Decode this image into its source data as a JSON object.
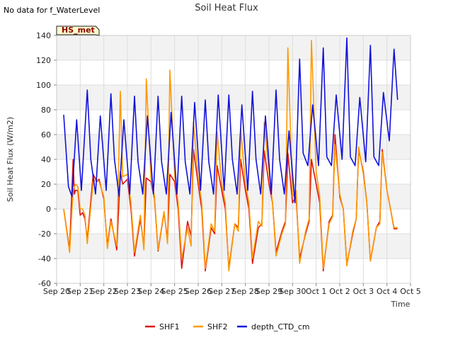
{
  "no_data_note": "No data for f_WaterLevel",
  "badge": "HS_met",
  "chart_data": {
    "type": "line",
    "title": "Soil Heat Flux",
    "xlabel": "Time",
    "ylabel": "Soil Heat Flux (W/m2)",
    "ylim": [
      -60,
      140
    ],
    "yticks": [
      -60,
      -40,
      -20,
      0,
      20,
      40,
      60,
      80,
      100,
      120,
      140
    ],
    "xlim": [
      0,
      15
    ],
    "xticks": [
      0,
      1,
      2,
      3,
      4,
      5,
      6,
      7,
      8,
      9,
      10,
      11,
      12,
      13,
      14,
      15
    ],
    "xtick_labels": [
      "Sep 20",
      "Sep 21",
      "Sep 22",
      "Sep 23",
      "Sep 24",
      "Sep 25",
      "Sep 26",
      "Sep 27",
      "Sep 28",
      "Sep 29",
      "Sep 30",
      "Oct 1",
      "Oct 2",
      "Oct 3",
      "Oct 4",
      "Oct 5"
    ],
    "x_units": "days since Sep 20",
    "grid": true,
    "legend_position": "bottom",
    "series": [
      {
        "name": "SHF1",
        "color": "#dd1111",
        "x": [
          0.3,
          0.55,
          0.7,
          0.75,
          0.8,
          0.9,
          1.0,
          1.1,
          1.2,
          1.3,
          1.55,
          1.7,
          1.8,
          2.0,
          2.15,
          2.3,
          2.55,
          2.7,
          2.8,
          3.0,
          3.15,
          3.3,
          3.55,
          3.7,
          3.8,
          4.0,
          4.15,
          4.3,
          4.55,
          4.7,
          4.8,
          5.0,
          5.15,
          5.3,
          5.55,
          5.7,
          5.8,
          6.0,
          6.15,
          6.3,
          6.55,
          6.7,
          6.8,
          7.0,
          7.15,
          7.3,
          7.55,
          7.7,
          7.8,
          8.0,
          8.15,
          8.3,
          8.55,
          8.7,
          8.8,
          9.0,
          9.15,
          9.3,
          9.55,
          9.7,
          9.8,
          10.0,
          10.15,
          10.3,
          10.55,
          10.7,
          10.8,
          11.0,
          11.15,
          11.3,
          11.55,
          11.7,
          11.8,
          12.0,
          12.15,
          12.3,
          12.55,
          12.7,
          12.8,
          13.0,
          13.15,
          13.3,
          13.55,
          13.7,
          13.8,
          14.0,
          14.15,
          14.3,
          14.45
        ],
        "y": [
          0,
          -33,
          40,
          12,
          15,
          15,
          -5,
          -3,
          -8,
          -25,
          28,
          22,
          24,
          8,
          -30,
          -8,
          -33,
          30,
          20,
          24,
          0,
          -38,
          -8,
          -30,
          25,
          22,
          8,
          -34,
          -3,
          -25,
          28,
          22,
          0,
          -48,
          -10,
          -22,
          48,
          20,
          0,
          -50,
          -15,
          -20,
          35,
          15,
          0,
          -48,
          -12,
          -15,
          40,
          15,
          0,
          -44,
          -15,
          -12,
          47,
          20,
          5,
          -35,
          -18,
          -10,
          45,
          5,
          10,
          -40,
          -20,
          -10,
          40,
          20,
          5,
          -50,
          -10,
          -5,
          60,
          10,
          0,
          -45,
          -20,
          -8,
          48,
          30,
          5,
          -42,
          -15,
          -10,
          48,
          15,
          0,
          -16,
          -16
        ]
      },
      {
        "name": "SHF2",
        "color": "#ff9900",
        "x": [
          0.3,
          0.55,
          0.7,
          0.75,
          0.8,
          0.9,
          1.0,
          1.1,
          1.2,
          1.3,
          1.55,
          1.7,
          1.8,
          2.0,
          2.15,
          2.3,
          2.55,
          2.7,
          2.8,
          3.0,
          3.15,
          3.3,
          3.55,
          3.7,
          3.8,
          4.0,
          4.15,
          4.3,
          4.55,
          4.7,
          4.8,
          5.0,
          5.15,
          5.3,
          5.55,
          5.7,
          5.8,
          6.0,
          6.15,
          6.3,
          6.55,
          6.7,
          6.8,
          7.0,
          7.15,
          7.3,
          7.55,
          7.7,
          7.8,
          8.0,
          8.15,
          8.3,
          8.55,
          8.7,
          8.8,
          9.0,
          9.15,
          9.3,
          9.55,
          9.7,
          9.8,
          10.0,
          10.15,
          10.3,
          10.55,
          10.7,
          10.8,
          11.0,
          11.15,
          11.3,
          11.55,
          11.7,
          11.8,
          12.0,
          12.15,
          12.3,
          12.55,
          12.7,
          12.8,
          13.0,
          13.15,
          13.3,
          13.55,
          13.7,
          13.8,
          14.0,
          14.15,
          14.3,
          14.45
        ],
        "y": [
          0,
          -35,
          15,
          18,
          20,
          18,
          0,
          0,
          -5,
          -28,
          22,
          24,
          22,
          10,
          -32,
          -10,
          -30,
          95,
          26,
          28,
          5,
          -35,
          -5,
          -33,
          105,
          25,
          10,
          -33,
          -2,
          -28,
          112,
          28,
          5,
          -40,
          -15,
          -30,
          70,
          25,
          5,
          -48,
          -12,
          -18,
          62,
          20,
          5,
          -50,
          -12,
          -18,
          65,
          20,
          5,
          -40,
          -10,
          -14,
          70,
          30,
          5,
          -38,
          -20,
          -12,
          130,
          10,
          15,
          -44,
          -18,
          -8,
          136,
          30,
          10,
          -48,
          -12,
          -6,
          52,
          12,
          0,
          -46,
          -18,
          -8,
          50,
          28,
          5,
          -42,
          -15,
          -12,
          46,
          15,
          0,
          -15,
          -15
        ]
      },
      {
        "name": "depth_CTD_cm",
        "color": "#1111dd",
        "x": [
          0.3,
          0.5,
          0.65,
          0.85,
          1.05,
          1.3,
          1.45,
          1.65,
          1.85,
          2.1,
          2.3,
          2.45,
          2.65,
          2.85,
          3.1,
          3.3,
          3.45,
          3.65,
          3.85,
          4.1,
          4.3,
          4.45,
          4.65,
          4.85,
          5.1,
          5.3,
          5.45,
          5.65,
          5.85,
          6.1,
          6.3,
          6.45,
          6.65,
          6.85,
          7.1,
          7.3,
          7.45,
          7.65,
          7.85,
          8.1,
          8.3,
          8.45,
          8.65,
          8.85,
          9.1,
          9.3,
          9.45,
          9.65,
          9.85,
          10.1,
          10.3,
          10.45,
          10.65,
          10.85,
          11.1,
          11.3,
          11.45,
          11.65,
          11.85,
          12.1,
          12.3,
          12.45,
          12.65,
          12.85,
          13.1,
          13.3,
          13.45,
          13.65,
          13.85,
          14.1,
          14.3,
          14.45
        ],
        "y": [
          76,
          18,
          10,
          72,
          15,
          96,
          40,
          12,
          75,
          15,
          93,
          40,
          10,
          72,
          12,
          91,
          38,
          12,
          75,
          12,
          91,
          38,
          12,
          78,
          12,
          91,
          38,
          12,
          86,
          15,
          88,
          38,
          12,
          92,
          15,
          92,
          40,
          12,
          84,
          15,
          95,
          40,
          12,
          75,
          12,
          96,
          40,
          12,
          63,
          5,
          121,
          45,
          35,
          84,
          35,
          130,
          42,
          35,
          92,
          40,
          138,
          42,
          35,
          90,
          38,
          132,
          42,
          35,
          94,
          55,
          129,
          88
        ]
      }
    ]
  }
}
